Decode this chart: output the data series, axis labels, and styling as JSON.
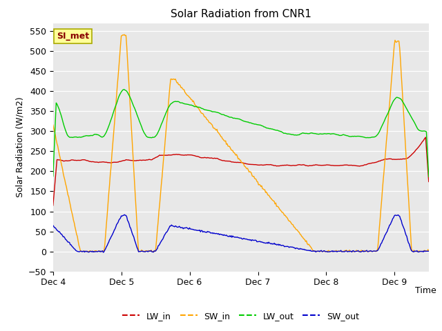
{
  "title": "Solar Radiation from CNR1",
  "xlabel": "Time",
  "ylabel": "Solar Radiation (W/m2)",
  "ylim": [
    -50,
    570
  ],
  "yticks": [
    -50,
    0,
    50,
    100,
    150,
    200,
    250,
    300,
    350,
    400,
    450,
    500,
    550
  ],
  "station_label": "SI_met",
  "ax_bg_color": "#e8e8e8",
  "fig_bg_color": "#ffffff",
  "colors": {
    "LW_in": "#cc0000",
    "SW_in": "#ffa500",
    "LW_out": "#00cc00",
    "SW_out": "#0000cc"
  },
  "line_width": 1.0
}
